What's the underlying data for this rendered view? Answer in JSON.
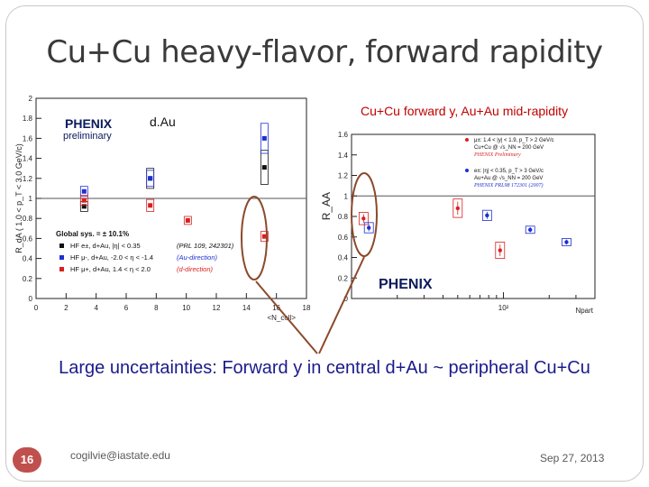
{
  "slide": {
    "title": "Cu+Cu heavy-flavor, forward rapidity",
    "caption": "Large uncertainties: Forward y in central d+Au ~ peripheral Cu+Cu",
    "slide_number": "16",
    "email": "cogilvie@iastate.edu",
    "date": "Sep 27, 2013",
    "right_plot_title": "Cu+Cu forward y,  Au+Au mid-rapidity"
  },
  "colors": {
    "title": "#3a3a3a",
    "caption": "#1a1a8c",
    "red": "#d92020",
    "blue": "#1f2fd1",
    "black": "#111111",
    "accent_brown": "#8b4a2b",
    "slide_badge": "#c0504d",
    "subtitle_red": "#c00000"
  },
  "chart_data": [
    {
      "type": "scatter",
      "panel": "left",
      "ylabel": "R_dA ( 1.0 < p_T < 3.0 GeV/c)",
      "xlabel": "<N_coll>",
      "xlim": [
        0,
        18
      ],
      "ylim": [
        0,
        2
      ],
      "xticks": [
        "0",
        "2",
        "4",
        "6",
        "8",
        "10",
        "12",
        "14",
        "16",
        "18"
      ],
      "yticks": [
        "0",
        "0.2",
        "0.4",
        "0.6",
        "0.8",
        "1",
        "1.2",
        "1.4",
        "1.6",
        "1.8",
        "2"
      ],
      "grid": false,
      "logo_text": "PHENIX",
      "logo_sub": "preliminary",
      "label": "d.Au",
      "series": [
        {
          "name": "HF e±, d+Au, |η| < 0.35",
          "color": "black",
          "x": [
            3.2,
            7.6,
            15.2
          ],
          "y": [
            0.92,
            1.2,
            1.31
          ],
          "err": [
            0.05,
            0.1,
            0.17
          ]
        },
        {
          "name": "HF μ-, d+Au, -2.0 < η < -1.4",
          "color": "blue",
          "x": [
            3.2,
            7.6,
            15.2
          ],
          "y": [
            1.07,
            1.2,
            1.6
          ],
          "err": [
            0.05,
            0.08,
            0.15
          ]
        },
        {
          "name": "HF μ+, d+Au, 1.4 < η < 2.0",
          "color": "red",
          "x": [
            3.2,
            7.6,
            15.2
          ],
          "y": [
            0.98,
            0.93,
            0.62
          ],
          "err": [
            0.05,
            0.06,
            0.05
          ]
        },
        {
          "name": "",
          "color": "red",
          "x": [
            10.1
          ],
          "y": [
            0.78
          ],
          "err": [
            0.04
          ]
        }
      ],
      "legend": {
        "placement": "bottom-left",
        "header": "Global sys. = ± 10.1%",
        "entries": [
          {
            "text": "HF e±, d+Au, |η| < 0.35",
            "ref": "(PRL 109, 242301)",
            "color": "black"
          },
          {
            "text": "HF μ-, d+Au, -2.0 < η < -1.4",
            "ref": "(Au-direction)",
            "color": "blue"
          },
          {
            "text": "HF μ+, d+Au, 1.4 < η < 2.0",
            "ref": "(d-direction)",
            "color": "red"
          }
        ]
      }
    },
    {
      "type": "scatter",
      "panel": "right",
      "title": "Cu+Cu forward y,  Au+Au mid-rapidity",
      "ylabel": "R_AA",
      "xlabel": "Npart",
      "x_scale": "log",
      "xlim": [
        10,
        400
      ],
      "ylim": [
        0,
        1.6
      ],
      "xticks": [
        "10²"
      ],
      "yticks": [
        "0",
        "0.2",
        "0.4",
        "0.6",
        "0.8",
        "1",
        "1.2",
        "1.4",
        "1.6"
      ],
      "grid": false,
      "logo_text": "PHENIX",
      "series": [
        {
          "name": "μ±: 1.4 < |y| < 1.9, p_T > 2 GeV/c, Cu+Cu @ √s_NN = 200 GeV",
          "color": "red",
          "x": [
            12,
            50,
            95
          ],
          "y": [
            0.78,
            0.88,
            0.47
          ],
          "err": [
            0.06,
            0.09,
            0.08
          ]
        },
        {
          "name": "e±: |η| < 0.35, p_T > 3 GeV/c, Au+Au @ √s_NN = 200 GeV",
          "color": "blue",
          "x": [
            13,
            78,
            150,
            260
          ],
          "y": [
            0.69,
            0.81,
            0.67,
            0.55
          ],
          "err": [
            0.05,
            0.05,
            0.02,
            0.02
          ]
        }
      ],
      "legend": {
        "placement": "top-right",
        "entries": [
          {
            "line1": "μ±: 1.4 < |y| < 1.9, p_T > 2 GeV/c",
            "line2": "Cu+Cu @ √s_NN = 200 GeV",
            "note": "PHENIX Preliminary",
            "color": "red"
          },
          {
            "line1": "e±: |η| < 0.35, p_T > 3 GeV/c",
            "line2": "Au+Au @ √s_NN = 200 GeV",
            "note": "PHENIX PRL98 172301 (2007)",
            "color": "blue"
          }
        ]
      }
    }
  ]
}
